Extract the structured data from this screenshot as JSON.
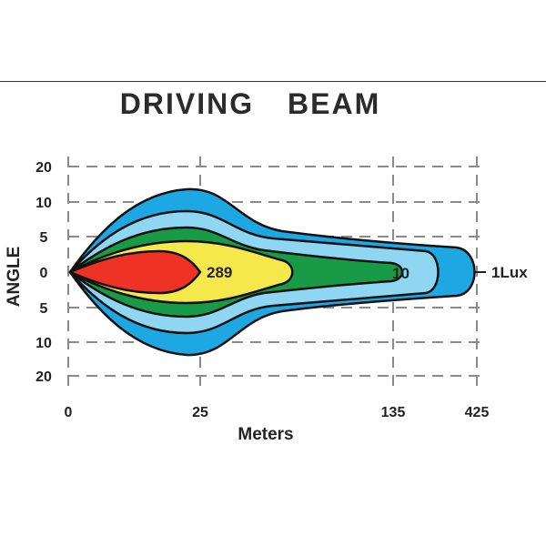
{
  "chart_data": {
    "type": "contour",
    "title": "DRIVING BEAM",
    "xlabel": "Meters",
    "ylabel": "ANGLE",
    "x_ticks": [
      "0",
      "25",
      "135",
      "425"
    ],
    "y_ticks": [
      "20",
      "10",
      "5",
      "0",
      "5",
      "10",
      "20"
    ],
    "grid": true,
    "zones": [
      {
        "name": "outer",
        "color": "#1ea8e3"
      },
      {
        "name": "second",
        "color": "#8fd6f3"
      },
      {
        "name": "third",
        "color": "#199a46"
      },
      {
        "name": "fourth",
        "color": "#f4e84a"
      },
      {
        "name": "core",
        "color": "#ee3324"
      }
    ],
    "annotations": [
      {
        "text": "289",
        "x": "25",
        "y": "0"
      },
      {
        "text": "10",
        "x": "135",
        "y": "0"
      },
      {
        "text": "1Lux",
        "x": "425",
        "y": "0"
      }
    ]
  }
}
